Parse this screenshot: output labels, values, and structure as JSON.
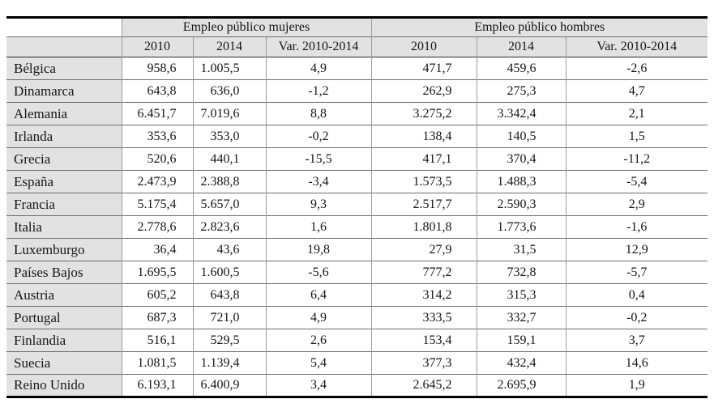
{
  "chart_data": {
    "type": "table",
    "title": "",
    "group_headers": [
      "Empleo público mujeres",
      "Empleo público hombres"
    ],
    "col_headers": [
      "2010",
      "2014",
      "Var. 2010-2014",
      "2010",
      "2014",
      "Var. 2010-2014"
    ],
    "rows": [
      {
        "country": "Bélgica",
        "values": [
          "958,6",
          "1.005,5",
          "4,9",
          "471,7",
          "459,6",
          "-2,6"
        ]
      },
      {
        "country": "Dinamarca",
        "values": [
          "643,8",
          "636,0",
          "-1,2",
          "262,9",
          "275,3",
          "4,7"
        ]
      },
      {
        "country": "Alemania",
        "values": [
          "6.451,7",
          "7.019,6",
          "8,8",
          "3.275,2",
          "3.342,4",
          "2,1"
        ]
      },
      {
        "country": "Irlanda",
        "values": [
          "353,6",
          "353,0",
          "-0,2",
          "138,4",
          "140,5",
          "1,5"
        ]
      },
      {
        "country": "Grecia",
        "values": [
          "520,6",
          "440,1",
          "-15,5",
          "417,1",
          "370,4",
          "-11,2"
        ]
      },
      {
        "country": "España",
        "values": [
          "2.473,9",
          "2.388,8",
          "-3,4",
          "1.573,5",
          "1.488,3",
          "-5,4"
        ]
      },
      {
        "country": "Francia",
        "values": [
          "5.175,4",
          "5.657,0",
          "9,3",
          "2.517,7",
          "2.590,3",
          "2,9"
        ]
      },
      {
        "country": "Italia",
        "values": [
          "2.778,6",
          "2.823,6",
          "1,6",
          "1.801,8",
          "1.773,6",
          "-1,6"
        ]
      },
      {
        "country": "Luxemburgo",
        "values": [
          "36,4",
          "43,6",
          "19,8",
          "27,9",
          "31,5",
          "12,9"
        ]
      },
      {
        "country": "Países Bajos",
        "values": [
          "1.695,5",
          "1.600,5",
          "-5,6",
          "777,2",
          "732,8",
          "-5,7"
        ]
      },
      {
        "country": "Austria",
        "values": [
          "605,2",
          "643,8",
          "6,4",
          "314,2",
          "315,3",
          "0,4"
        ]
      },
      {
        "country": "Portugal",
        "values": [
          "687,3",
          "721,0",
          "4,9",
          "333,5",
          "332,7",
          "-0,2"
        ]
      },
      {
        "country": "Finlandia",
        "values": [
          "516,1",
          "529,5",
          "2,6",
          "153,4",
          "159,1",
          "3,7"
        ]
      },
      {
        "country": "Suecia",
        "values": [
          "1.081,5",
          "1.139,4",
          "5,4",
          "377,3",
          "432,4",
          "14,6"
        ]
      },
      {
        "country": "Reino Unido",
        "values": [
          "6.193,1",
          "6.400,9",
          "3,4",
          "2.645,2",
          "2.695,9",
          "1,9"
        ]
      }
    ],
    "layout": {
      "grid": true,
      "header_background": "#e2e2e2",
      "row_label_background": "#e2e2e2",
      "outer_border_color": "#000000",
      "inner_line_color": "#6e6e6e"
    }
  }
}
